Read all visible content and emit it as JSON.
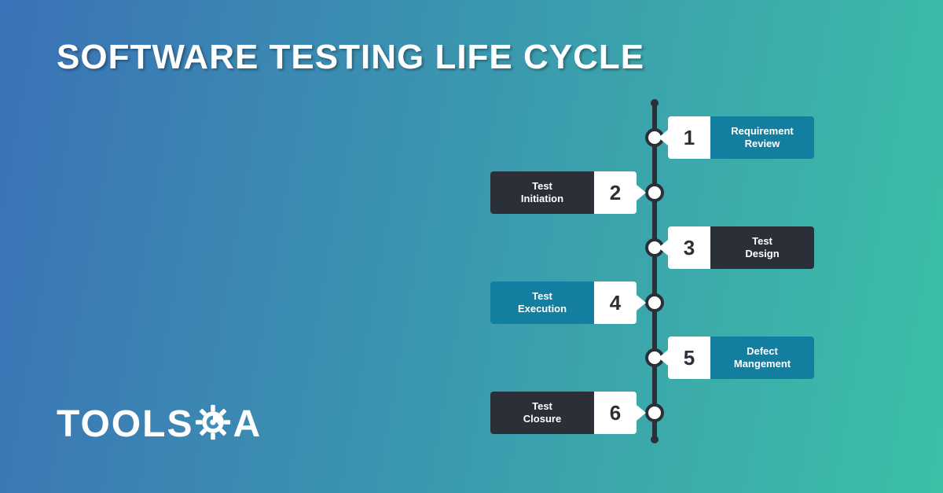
{
  "background": {
    "gradient_from": "#3b72b7",
    "gradient_to": "#3bc0a6"
  },
  "title": {
    "text": "SOFTWARE TESTING LIFE CYCLE",
    "font_size": 44,
    "color": "#ffffff"
  },
  "logo": {
    "text_left": "TOOLS",
    "text_right": "A",
    "color": "#ffffff",
    "gear_size": 46
  },
  "timeline": {
    "spine_color": "#2b3038",
    "dot_outer_color": "#2b3038",
    "dot_inner_color": "#ffffff",
    "step_height": 54,
    "step_gap": 70,
    "number_color": "#2b3038",
    "number_bg": "#ffffff",
    "colors": {
      "teal": "#127ea0",
      "dark": "#2b3038"
    },
    "steps": [
      {
        "num": "1",
        "label": "Requirement Review",
        "side": "right",
        "label_bg": "#127ea0"
      },
      {
        "num": "2",
        "label": "Test Initiation",
        "side": "left",
        "label_bg": "#2b3038"
      },
      {
        "num": "3",
        "label": "Test Design",
        "side": "right",
        "label_bg": "#2b3038"
      },
      {
        "num": "4",
        "label": "Test Execution",
        "side": "left",
        "label_bg": "#127ea0"
      },
      {
        "num": "5",
        "label": "Defect Mangement",
        "side": "right",
        "label_bg": "#127ea0"
      },
      {
        "num": "6",
        "label": "Test Closure",
        "side": "left",
        "label_bg": "#2b3038"
      }
    ]
  }
}
